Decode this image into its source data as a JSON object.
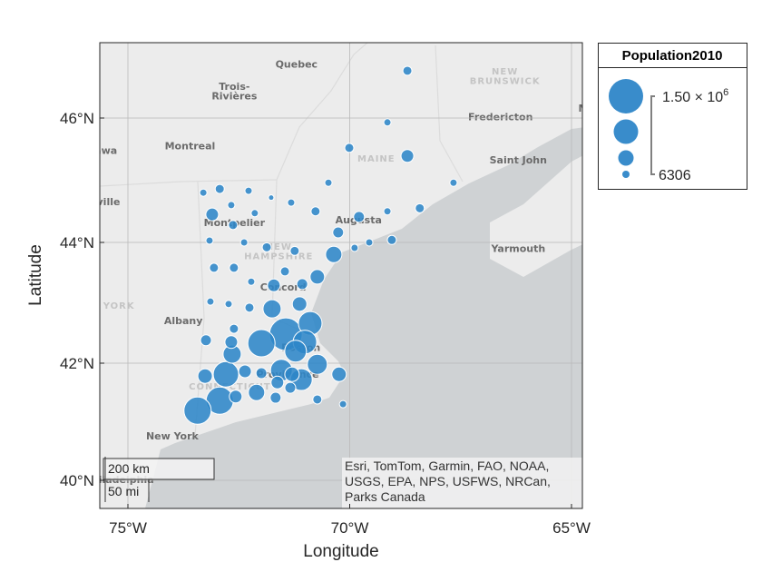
{
  "chart_data": {
    "type": "geobubble",
    "size_variable": "Population2010",
    "xlabel": "Longitude",
    "ylabel": "Latitude",
    "lon_ticks": [
      "75°W",
      "70°W",
      "65°W"
    ],
    "lat_ticks": [
      "46°N",
      "44°N",
      "42°N",
      "40°N"
    ],
    "lon_range": [
      -75.6,
      -64.76
    ],
    "lat_range": [
      39.55,
      47.2
    ],
    "grid": true,
    "bubble_color": "#2e86c8",
    "legend": {
      "title": "Population2010",
      "max_label": "1.50 × 10",
      "max_exp": "6",
      "min_label": "6306",
      "max_value": 1500000,
      "min_value": 6306,
      "placement": "right"
    },
    "scale_bar": {
      "km": "200 km",
      "mi": "50 mi"
    },
    "attribution": [
      "Esri, TomTom, Garmin, FAO, NOAA,",
      "USGS, EPA, NPS, USFWS, NRCan,",
      "Parks Canada"
    ],
    "basemap_labels": [
      {
        "text": "Quebec",
        "lat": 46.81,
        "lon": -71.2,
        "kind": "city"
      },
      {
        "text": "Trois-",
        "lat": 46.45,
        "lon": -72.6,
        "kind": "city"
      },
      {
        "text": "Rivières",
        "lat": 46.3,
        "lon": -72.6,
        "kind": "city"
      },
      {
        "text": "Montreal",
        "lat": 45.5,
        "lon": -73.6,
        "kind": "city"
      },
      {
        "text": "Ottawa",
        "lat": 45.42,
        "lon": -75.7,
        "kind": "city"
      },
      {
        "text": "Brockville",
        "lat": 44.6,
        "lon": -75.8,
        "kind": "city"
      },
      {
        "text": "Montpelier",
        "lat": 44.26,
        "lon": -72.6,
        "kind": "city"
      },
      {
        "text": "Augusta",
        "lat": 44.31,
        "lon": -69.8,
        "kind": "city"
      },
      {
        "text": "MAINE",
        "lat": 45.3,
        "lon": -69.4,
        "kind": "region"
      },
      {
        "text": "NEW",
        "lat": 46.7,
        "lon": -66.5,
        "kind": "region"
      },
      {
        "text": "BRUNSWICK",
        "lat": 46.55,
        "lon": -66.5,
        "kind": "region"
      },
      {
        "text": "Fredericton",
        "lat": 45.96,
        "lon": -66.6,
        "kind": "city"
      },
      {
        "text": "Moncton",
        "lat": 46.1,
        "lon": -64.3,
        "kind": "city"
      },
      {
        "text": "Saint John",
        "lat": 45.27,
        "lon": -66.2,
        "kind": "city"
      },
      {
        "text": "Yarmouth",
        "lat": 43.84,
        "lon": -66.2,
        "kind": "city"
      },
      {
        "text": "NEW",
        "lat": 43.88,
        "lon": -71.6,
        "kind": "region"
      },
      {
        "text": "HAMPSHIRE",
        "lat": 43.72,
        "lon": -71.6,
        "kind": "region"
      },
      {
        "text": "Concord",
        "lat": 43.2,
        "lon": -71.5,
        "kind": "city"
      },
      {
        "text": "YORK",
        "lat": 42.9,
        "lon": -75.2,
        "kind": "region"
      },
      {
        "text": "Albany",
        "lat": 42.65,
        "lon": -73.75,
        "kind": "city"
      },
      {
        "text": "Boston",
        "lat": 42.2,
        "lon": -71.1,
        "kind": "city"
      },
      {
        "text": "Providence",
        "lat": 41.75,
        "lon": -71.4,
        "kind": "city"
      },
      {
        "text": "CONNECTICUT",
        "lat": 41.55,
        "lon": -72.7,
        "kind": "region"
      },
      {
        "text": "New York",
        "lat": 40.7,
        "lon": -74.0,
        "kind": "city"
      },
      {
        "text": "Philadelphia",
        "lat": 39.95,
        "lon": -75.2,
        "kind": "city"
      }
    ],
    "points": [
      [
        46.76,
        -68.7,
        205000
      ],
      [
        45.93,
        -69.15,
        106000
      ],
      [
        45.52,
        -70.01,
        205000
      ],
      [
        45.39,
        -68.7,
        405000
      ],
      [
        44.96,
        -67.66,
        106000
      ],
      [
        44.96,
        -70.48,
        106000
      ],
      [
        44.8,
        -73.3,
        106000
      ],
      [
        44.86,
        -72.93,
        205000
      ],
      [
        44.83,
        -72.28,
        106000
      ],
      [
        44.72,
        -71.77,
        6306
      ],
      [
        44.64,
        -71.32,
        106000
      ],
      [
        44.6,
        -72.67,
        106000
      ],
      [
        44.45,
        -73.1,
        405000
      ],
      [
        44.55,
        -68.42,
        205000
      ],
      [
        44.5,
        -69.15,
        106000
      ],
      [
        44.47,
        -72.14,
        106000
      ],
      [
        44.5,
        -70.77,
        205000
      ],
      [
        44.41,
        -69.79,
        305000
      ],
      [
        44.28,
        -72.63,
        205000
      ],
      [
        44.16,
        -70.26,
        305000
      ],
      [
        44.03,
        -73.16,
        106000
      ],
      [
        44.0,
        -72.38,
        106000
      ],
      [
        43.92,
        -71.87,
        205000
      ],
      [
        43.86,
        -71.24,
        205000
      ],
      [
        43.91,
        -69.89,
        106000
      ],
      [
        44.0,
        -69.56,
        106000
      ],
      [
        44.04,
        -69.05,
        205000
      ],
      [
        43.8,
        -70.36,
        604000
      ],
      [
        43.58,
        -73.06,
        205000
      ],
      [
        43.58,
        -72.61,
        205000
      ],
      [
        43.52,
        -71.46,
        205000
      ],
      [
        43.43,
        -70.73,
        504000
      ],
      [
        43.35,
        -72.22,
        106000
      ],
      [
        43.29,
        -71.71,
        405000
      ],
      [
        43.31,
        -71.07,
        305000
      ],
      [
        43.02,
        -73.14,
        106000
      ],
      [
        42.98,
        -72.73,
        106000
      ],
      [
        42.92,
        -72.26,
        205000
      ],
      [
        42.98,
        -71.13,
        504000
      ],
      [
        42.9,
        -71.75,
        703000
      ],
      [
        42.66,
        -70.89,
        1002000
      ],
      [
        42.57,
        -72.61,
        205000
      ],
      [
        42.38,
        -73.24,
        305000
      ],
      [
        42.35,
        -72.67,
        405000
      ],
      [
        42.48,
        -71.44,
        1500000
      ],
      [
        42.33,
        -71.99,
        1201000
      ],
      [
        42.35,
        -71.01,
        1002000
      ],
      [
        42.2,
        -71.22,
        902000
      ],
      [
        42.15,
        -72.65,
        703000
      ],
      [
        41.98,
        -70.73,
        803000
      ],
      [
        41.78,
        -73.26,
        504000
      ],
      [
        41.81,
        -72.79,
        1101000
      ],
      [
        41.86,
        -72.36,
        405000
      ],
      [
        41.83,
        -71.99,
        305000
      ],
      [
        41.88,
        -71.54,
        902000
      ],
      [
        41.81,
        -71.3,
        504000
      ],
      [
        41.81,
        -70.24,
        504000
      ],
      [
        41.72,
        -71.09,
        902000
      ],
      [
        41.67,
        -71.63,
        405000
      ],
      [
        41.58,
        -71.34,
        305000
      ],
      [
        41.5,
        -72.1,
        604000
      ],
      [
        41.43,
        -72.57,
        405000
      ],
      [
        41.36,
        -72.93,
        1201000
      ],
      [
        41.19,
        -73.43,
        1201000
      ],
      [
        41.41,
        -71.67,
        305000
      ],
      [
        41.38,
        -70.73,
        205000
      ],
      [
        41.3,
        -70.15,
        106000
      ]
    ]
  }
}
